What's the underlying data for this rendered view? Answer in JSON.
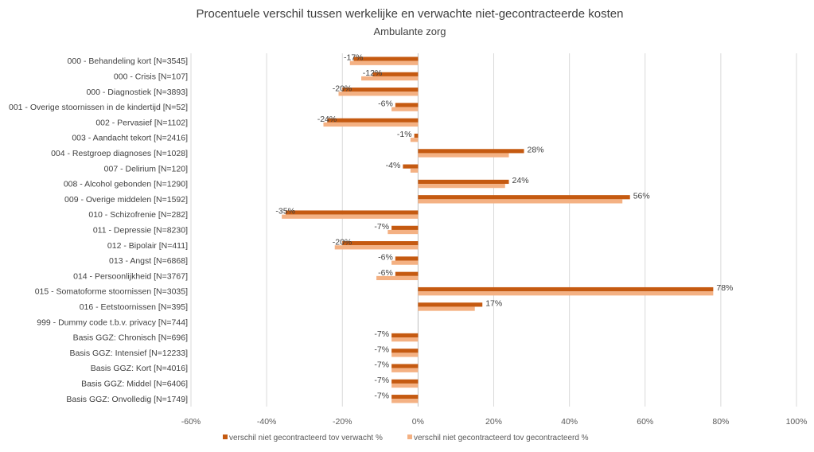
{
  "chart_data": {
    "type": "bar",
    "orientation": "horizontal",
    "title": "Procentuele verschil tussen werkelijke en verwachte niet-gecontracteerde kosten",
    "subtitle": "Ambulante zorg",
    "xlim": [
      -60,
      100
    ],
    "x_ticks": [
      "-60%",
      "-40%",
      "-20%",
      "0%",
      "20%",
      "40%",
      "60%",
      "80%",
      "100%"
    ],
    "x_tick_values": [
      -60,
      -40,
      -20,
      0,
      20,
      40,
      60,
      80,
      100
    ],
    "grid": true,
    "legend_position": "bottom",
    "categories": [
      "000 - Behandeling kort [N=3545]",
      "000 - Crisis [N=107]",
      "000 - Diagnostiek [N=3893]",
      "001 - Overige stoornissen in de kindertijd [N=52]",
      "002 - Pervasief [N=1102]",
      "003 - Aandacht tekort [N=2416]",
      "004 - Restgroep diagnoses [N=1028]",
      "007 - Delirium [N=120]",
      "008 - Alcohol gebonden [N=1290]",
      "009 - Overige middelen [N=1592]",
      "010 - Schizofrenie [N=282]",
      "011 - Depressie [N=8230]",
      "012 - Bipolair [N=411]",
      "013 - Angst [N=6868]",
      "014 - Persoonlijkheid [N=3767]",
      "015 - Somatoforme stoornissen [N=3035]",
      "016 - Eetstoornissen [N=395]",
      "999 - Dummy code t.b.v. privacy [N=744]",
      "Basis GGZ: Chronisch [N=696]",
      "Basis GGZ: Intensief [N=12233]",
      "Basis GGZ: Kort [N=4016]",
      "Basis GGZ: Middel [N=6406]",
      "Basis GGZ: Onvolledig [N=1749]"
    ],
    "series": [
      {
        "name": "verschil niet gecontracteerd tov verwacht %",
        "color": "#c55a11",
        "values": [
          -17,
          -12,
          -20,
          -6,
          -24,
          -1,
          28,
          -4,
          24,
          56,
          -35,
          -7,
          -20,
          -6,
          -6,
          78,
          17,
          null,
          -7,
          -7,
          -7,
          -7,
          -7
        ]
      },
      {
        "name": "verschil niet gecontracteerd tov gecontracteerd %",
        "color": "#f4b183",
        "values": [
          -18,
          -15,
          -21,
          -7,
          -25,
          -2,
          24,
          -2,
          23,
          54,
          -36,
          -8,
          -22,
          -7,
          -11,
          78,
          15,
          null,
          -7,
          -7,
          -7,
          -7,
          -7
        ]
      }
    ],
    "data_labels": [
      "-17%",
      "-12%",
      "-20%",
      "-6%",
      "-24%",
      "-1%",
      "28%",
      "-4%",
      "24%",
      "56%",
      "-35%",
      "-7%",
      "-20%",
      "-6%",
      "-6%",
      "78%",
      "17%",
      "",
      "-7%",
      "-7%",
      "-7%",
      "-7%",
      "-7%"
    ]
  }
}
